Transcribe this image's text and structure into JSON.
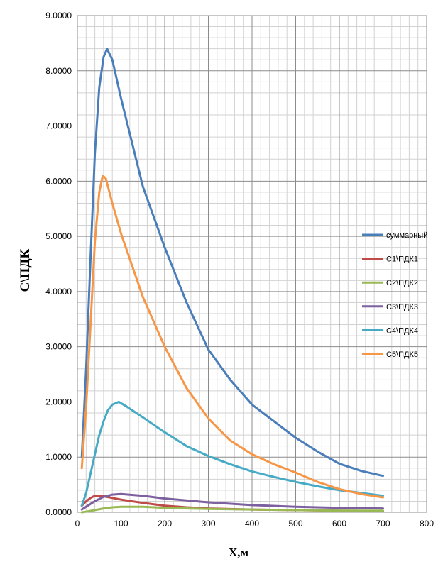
{
  "chart_data": {
    "type": "line",
    "title": "",
    "xlabel": "X,м",
    "ylabel": "С\\ПДК",
    "xlim": [
      0,
      800
    ],
    "ylim": [
      0,
      9
    ],
    "xticks": [
      0,
      100,
      200,
      300,
      400,
      500,
      600,
      700,
      800
    ],
    "xtick_labels": [
      "0",
      "100",
      "200",
      "300",
      "400",
      "500",
      "600",
      "700",
      "800"
    ],
    "yticks": [
      0,
      1,
      2,
      3,
      4,
      5,
      6,
      7,
      8,
      9
    ],
    "ytick_labels": [
      "0.0000",
      "1.0000",
      "2.0000",
      "3.0000",
      "4.0000",
      "5.0000",
      "6.0000",
      "7.0000",
      "8.0000",
      "9.0000"
    ],
    "grid": true,
    "minor_grid": true,
    "legend_position": "right",
    "series": [
      {
        "name": "суммарный",
        "color": "#4A7EBB",
        "points": [
          [
            10,
            1.0
          ],
          [
            20,
            2.6
          ],
          [
            30,
            4.6
          ],
          [
            40,
            6.5
          ],
          [
            50,
            7.7
          ],
          [
            60,
            8.25
          ],
          [
            68,
            8.4
          ],
          [
            80,
            8.2
          ],
          [
            100,
            7.5
          ],
          [
            150,
            5.9
          ],
          [
            200,
            4.8
          ],
          [
            250,
            3.8
          ],
          [
            300,
            2.95
          ],
          [
            350,
            2.4
          ],
          [
            400,
            1.95
          ],
          [
            450,
            1.65
          ],
          [
            500,
            1.35
          ],
          [
            550,
            1.1
          ],
          [
            600,
            0.88
          ],
          [
            650,
            0.75
          ],
          [
            700,
            0.66
          ]
        ]
      },
      {
        "name": "С1\\ПДК1",
        "color": "#BE4B48",
        "points": [
          [
            10,
            0.12
          ],
          [
            20,
            0.2
          ],
          [
            30,
            0.26
          ],
          [
            40,
            0.3
          ],
          [
            50,
            0.3
          ],
          [
            60,
            0.29
          ],
          [
            80,
            0.26
          ],
          [
            100,
            0.23
          ],
          [
            150,
            0.17
          ],
          [
            200,
            0.12
          ],
          [
            250,
            0.09
          ],
          [
            300,
            0.07
          ],
          [
            400,
            0.05
          ],
          [
            500,
            0.04
          ],
          [
            600,
            0.03
          ],
          [
            700,
            0.02
          ]
        ]
      },
      {
        "name": "С2\\ПДК2",
        "color": "#98B954",
        "points": [
          [
            10,
            0.0
          ],
          [
            20,
            0.01
          ],
          [
            40,
            0.04
          ],
          [
            60,
            0.07
          ],
          [
            80,
            0.09
          ],
          [
            100,
            0.1
          ],
          [
            150,
            0.1
          ],
          [
            200,
            0.08
          ],
          [
            300,
            0.06
          ],
          [
            400,
            0.05
          ],
          [
            500,
            0.04
          ],
          [
            600,
            0.03
          ],
          [
            700,
            0.03
          ]
        ]
      },
      {
        "name": "С3\\ПДК3",
        "color": "#7D60A0",
        "points": [
          [
            10,
            0.05
          ],
          [
            20,
            0.1
          ],
          [
            40,
            0.2
          ],
          [
            60,
            0.28
          ],
          [
            80,
            0.32
          ],
          [
            100,
            0.33
          ],
          [
            150,
            0.3
          ],
          [
            200,
            0.25
          ],
          [
            300,
            0.18
          ],
          [
            400,
            0.13
          ],
          [
            500,
            0.1
          ],
          [
            600,
            0.08
          ],
          [
            700,
            0.07
          ]
        ]
      },
      {
        "name": "С4\\ПДК4",
        "color": "#46AAC5",
        "points": [
          [
            10,
            0.12
          ],
          [
            20,
            0.35
          ],
          [
            30,
            0.7
          ],
          [
            40,
            1.05
          ],
          [
            50,
            1.4
          ],
          [
            60,
            1.65
          ],
          [
            70,
            1.85
          ],
          [
            80,
            1.95
          ],
          [
            95,
            2.0
          ],
          [
            110,
            1.93
          ],
          [
            150,
            1.72
          ],
          [
            200,
            1.45
          ],
          [
            250,
            1.2
          ],
          [
            300,
            1.02
          ],
          [
            350,
            0.87
          ],
          [
            400,
            0.74
          ],
          [
            450,
            0.64
          ],
          [
            500,
            0.55
          ],
          [
            550,
            0.47
          ],
          [
            600,
            0.4
          ],
          [
            650,
            0.35
          ],
          [
            700,
            0.3
          ]
        ]
      },
      {
        "name": "С5\\ПДК5",
        "color": "#F79646",
        "points": [
          [
            10,
            0.8
          ],
          [
            20,
            1.9
          ],
          [
            30,
            3.4
          ],
          [
            40,
            4.9
          ],
          [
            50,
            5.8
          ],
          [
            58,
            6.1
          ],
          [
            65,
            6.05
          ],
          [
            80,
            5.6
          ],
          [
            100,
            5.05
          ],
          [
            150,
            3.9
          ],
          [
            200,
            3.0
          ],
          [
            250,
            2.25
          ],
          [
            300,
            1.7
          ],
          [
            350,
            1.3
          ],
          [
            400,
            1.05
          ],
          [
            450,
            0.87
          ],
          [
            500,
            0.72
          ],
          [
            550,
            0.55
          ],
          [
            600,
            0.42
          ],
          [
            650,
            0.33
          ],
          [
            700,
            0.27
          ]
        ]
      }
    ]
  }
}
